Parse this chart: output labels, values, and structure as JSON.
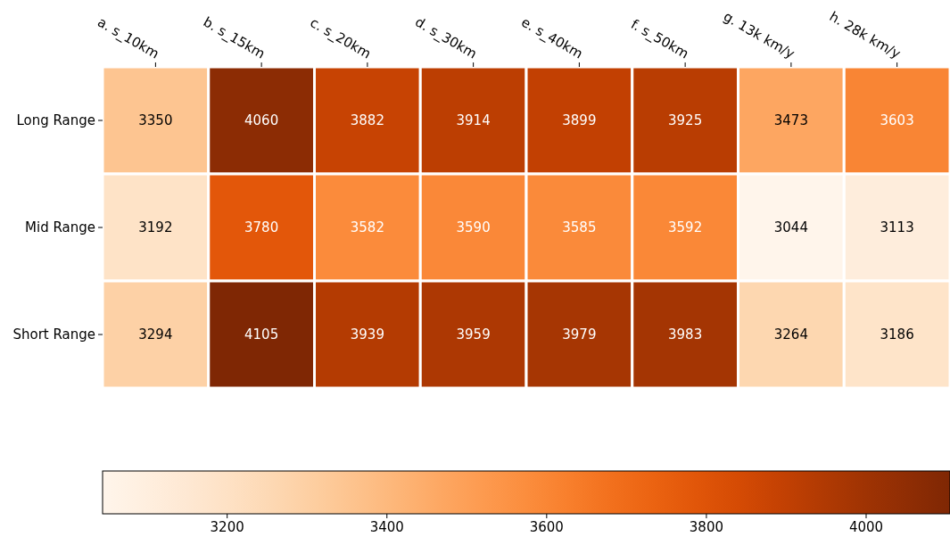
{
  "chart_data": {
    "type": "heatmap",
    "categories": [
      "a. s_10km",
      "b. s_15km",
      "c. s_20km",
      "d. s_30km",
      "e. s_40km",
      "f. s_50km",
      "g. 13k km/y",
      "h. 28k km/y"
    ],
    "y_categories": [
      "Long Range",
      "Mid Range",
      "Short Range"
    ],
    "cells": [
      [
        3350,
        4060,
        3882,
        3914,
        3899,
        3925,
        3473,
        3603
      ],
      [
        3192,
        3780,
        3582,
        3590,
        3585,
        3592,
        3044,
        3113
      ],
      [
        3294,
        4105,
        3939,
        3959,
        3979,
        3983,
        3264,
        3186
      ]
    ],
    "clim": [
      3044,
      4105
    ],
    "cticks": [
      3200,
      3400,
      3600,
      3800,
      4000
    ],
    "data_labels": true
  }
}
